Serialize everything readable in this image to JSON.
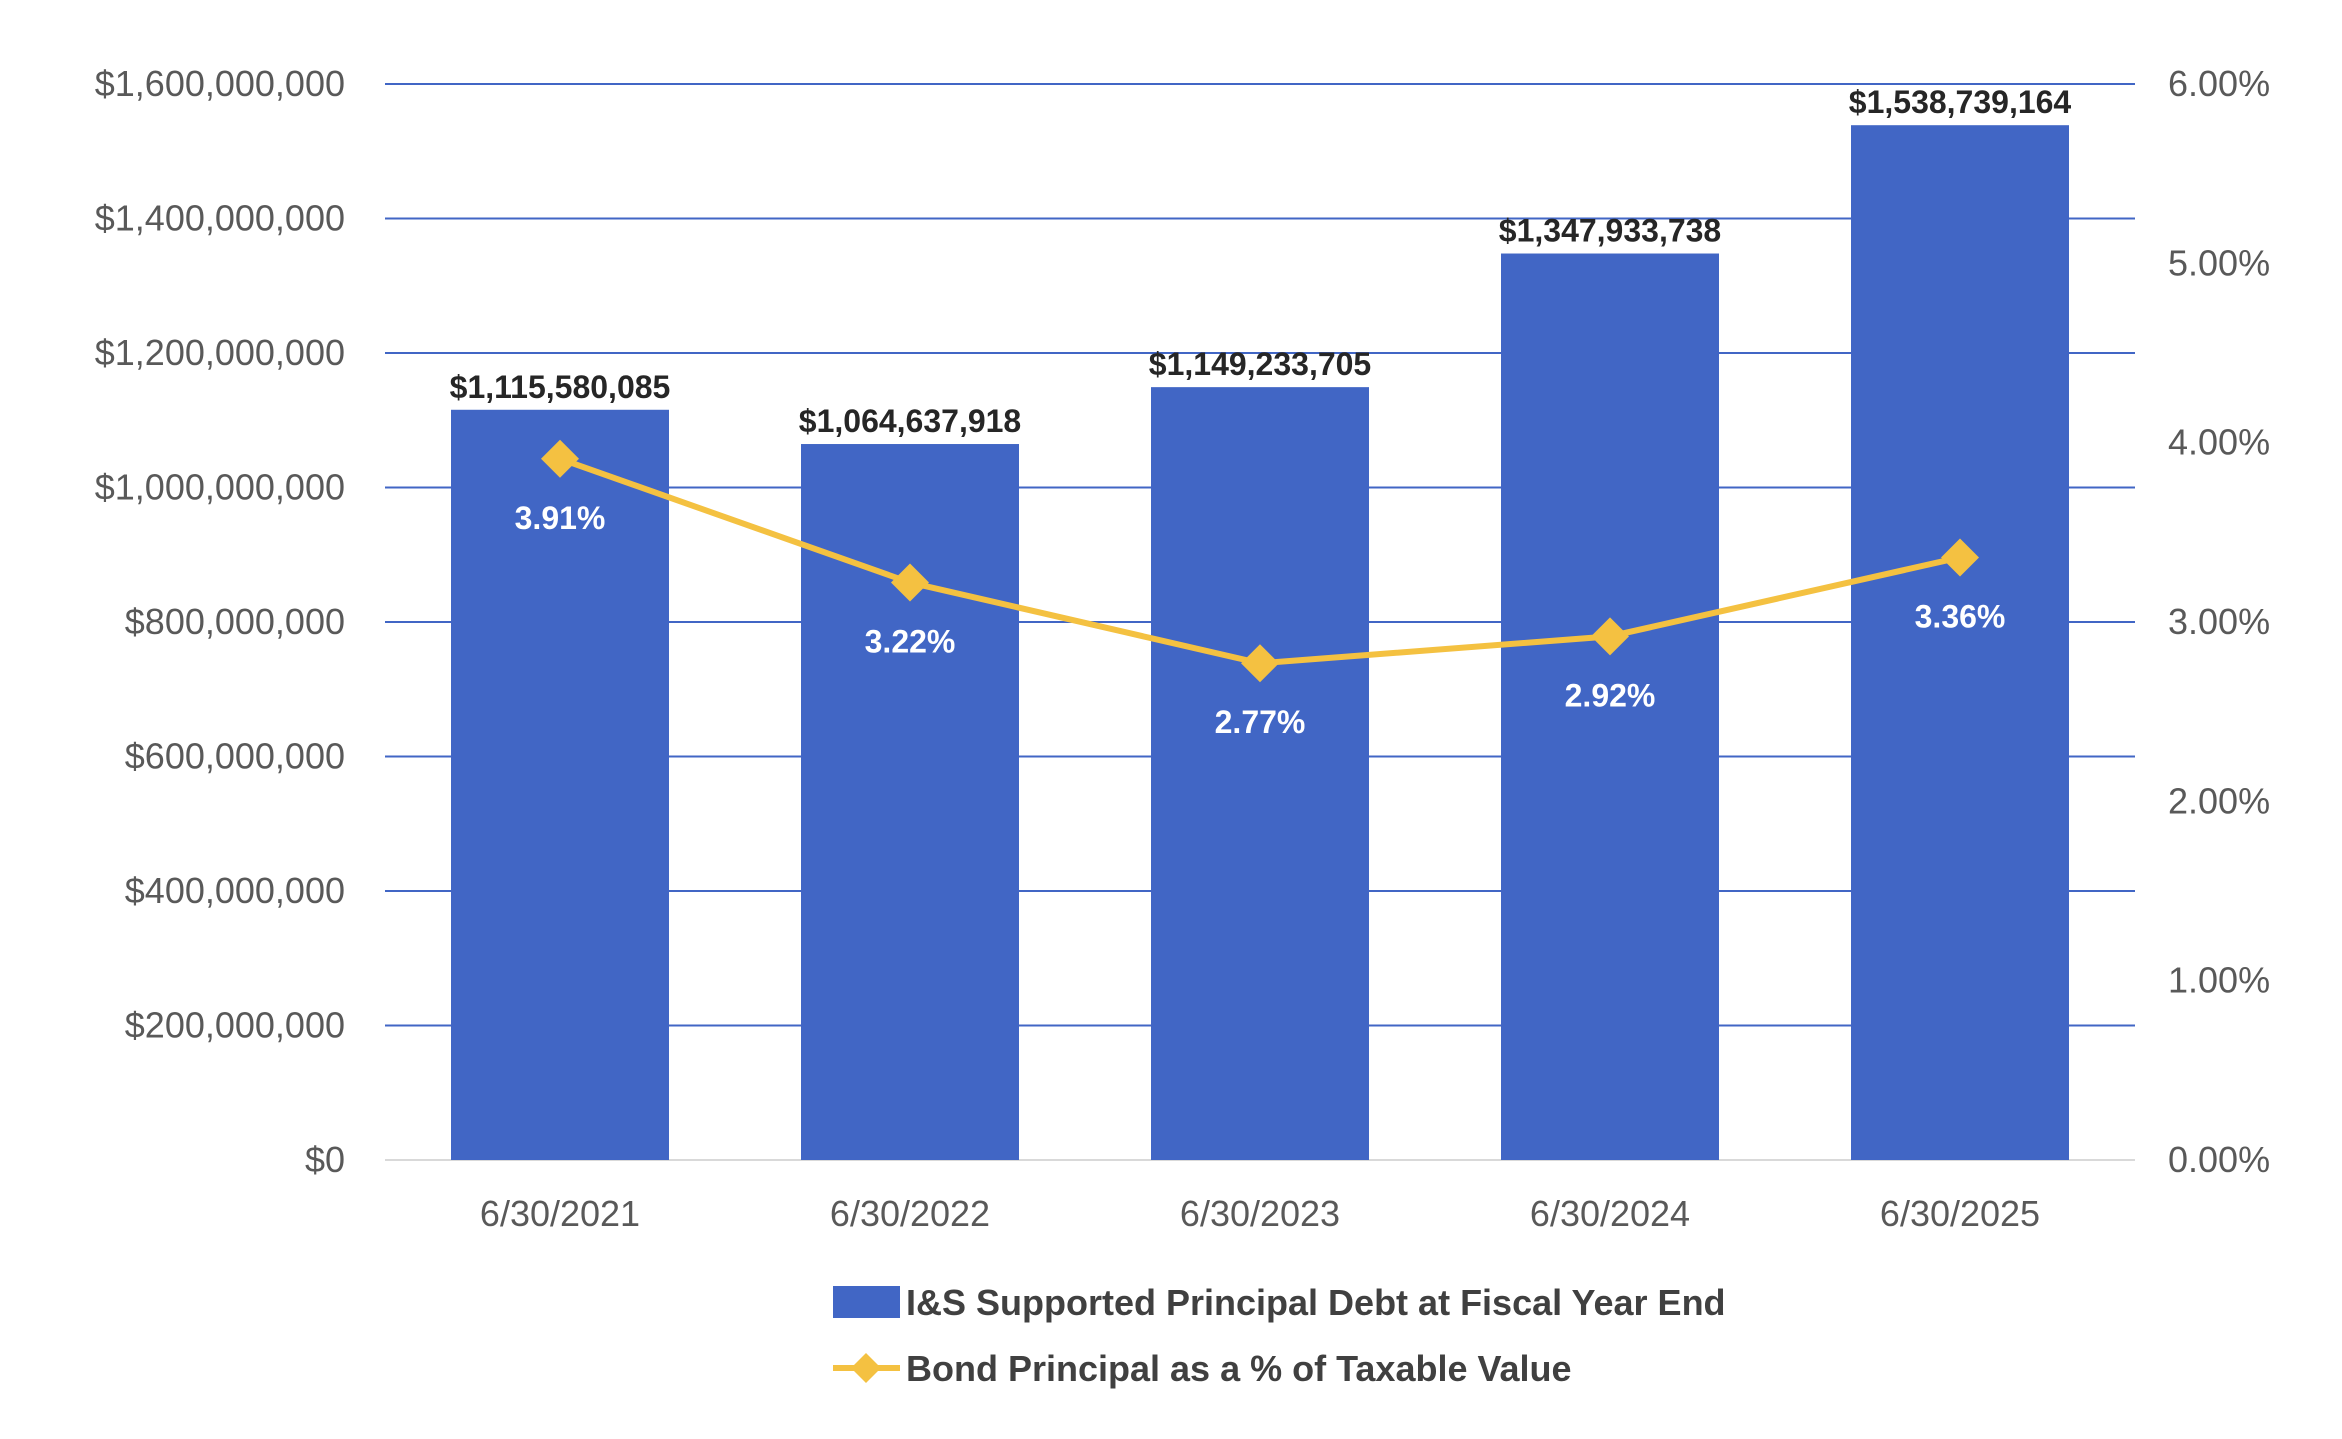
{
  "chart_data": {
    "type": "bar",
    "title": "",
    "xlabel": "",
    "ylabel": "",
    "categories": [
      "6/30/2021",
      "6/30/2022",
      "6/30/2023",
      "6/30/2024",
      "6/30/2025"
    ],
    "series": [
      {
        "name": "I&S Supported Principal Debt at Fiscal Year End",
        "type": "bar",
        "axis": "left",
        "color": "#4166C5",
        "values": [
          1115580085,
          1064637918,
          1149233705,
          1347933738,
          1538739164
        ],
        "labels": [
          "$1,115,580,085",
          "$1,064,637,918",
          "$1,149,233,705",
          "$1,347,933,738",
          "$1,538,739,164"
        ]
      },
      {
        "name": "Bond Principal as a % of Taxable Value",
        "type": "line",
        "axis": "right",
        "color": "#F4C141",
        "marker": "diamond",
        "values": [
          3.91,
          3.22,
          2.77,
          2.92,
          3.36
        ],
        "labels": [
          "3.91%",
          "3.22%",
          "2.77%",
          "2.92%",
          "3.36%"
        ]
      }
    ],
    "ylim": [
      0,
      1600000000
    ],
    "y2lim": [
      0,
      6
    ],
    "y_ticks": [
      0,
      200000000,
      400000000,
      600000000,
      800000000,
      1000000000,
      1200000000,
      1400000000,
      1600000000
    ],
    "y_tick_labels": [
      "$0",
      "$200,000,000",
      "$400,000,000",
      "$600,000,000",
      "$800,000,000",
      "$1,000,000,000",
      "$1,200,000,000",
      "$1,400,000,000",
      "$1,600,000,000"
    ],
    "y2_ticks": [
      0,
      1,
      2,
      3,
      4,
      5,
      6
    ],
    "y2_tick_labels": [
      "0.00%",
      "1.00%",
      "2.00%",
      "3.00%",
      "4.00%",
      "5.00%",
      "6.00%"
    ],
    "grid": true,
    "gridline_color": "#4166C5",
    "legend_position": "bottom"
  }
}
